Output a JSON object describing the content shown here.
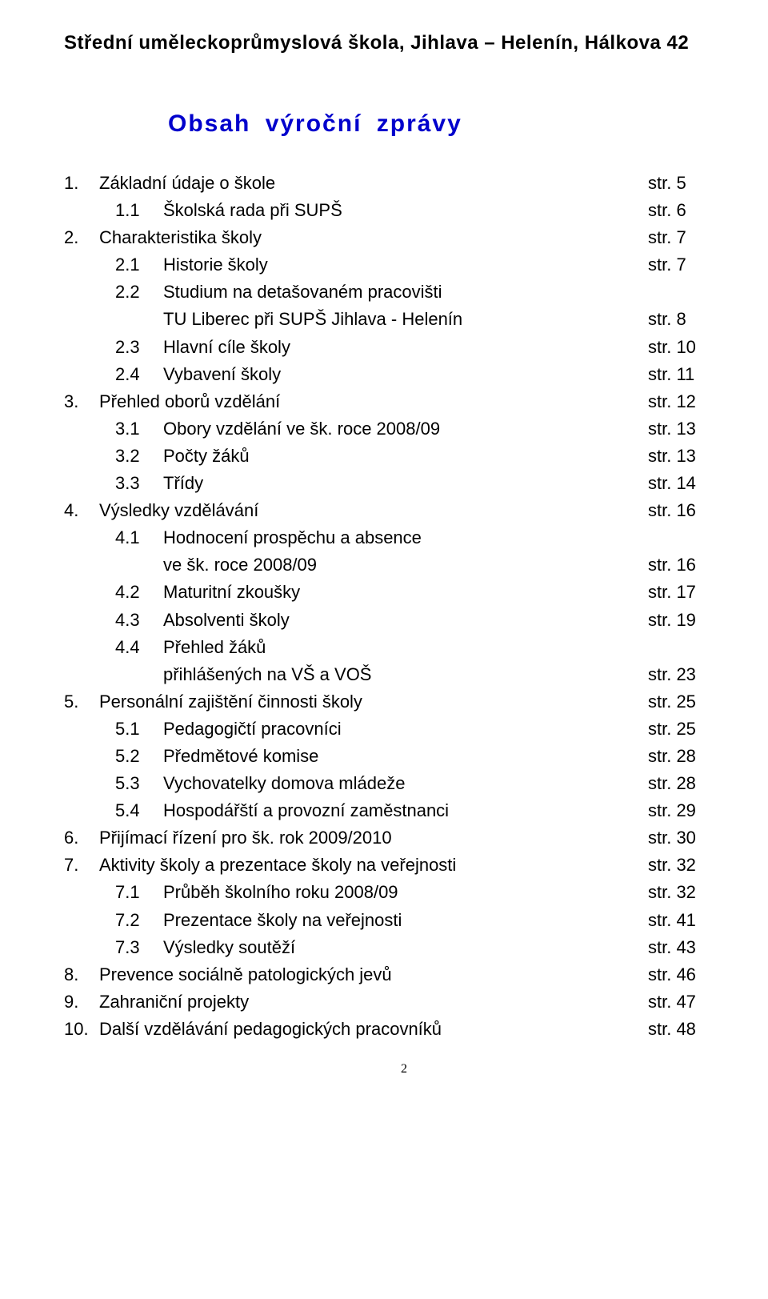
{
  "document": {
    "header": "Střední uměleckoprůmyslová škola, Jihlava – Helenín, Hálkova 42",
    "title": "Obsah  výroční  zprávy",
    "page_label_prefix": "str.",
    "footer_page_number": "2",
    "colors": {
      "title_color": "#0000cc",
      "text_color": "#000000",
      "background": "#ffffff"
    },
    "typography": {
      "header_fontsize": 24,
      "title_fontsize": 30,
      "body_fontsize": 22,
      "font_family": "Comic Sans MS"
    },
    "toc": [
      {
        "level": 0,
        "num": "1.",
        "text": "Základní údaje o škole",
        "page": "5"
      },
      {
        "level": 1,
        "num": "1.1",
        "text": "Školská rada při SUPŠ",
        "page": "6"
      },
      {
        "level": 0,
        "num": "2.",
        "text": "Charakteristika školy",
        "page": "7"
      },
      {
        "level": 1,
        "num": "2.1",
        "text": "Historie školy",
        "page": "7"
      },
      {
        "level": 1,
        "num": "2.2",
        "text": "Studium na detašovaném pracovišti",
        "page": ""
      },
      {
        "level": 1,
        "num": "",
        "text": "TU Liberec při SUPŠ Jihlava - Helenín",
        "page": "8"
      },
      {
        "level": 1,
        "num": "2.3",
        "text": "Hlavní cíle školy",
        "page": "10"
      },
      {
        "level": 1,
        "num": "2.4",
        "text": "Vybavení školy",
        "page": "11"
      },
      {
        "level": 0,
        "num": "3.",
        "text": "Přehled oborů vzdělání",
        "page": "12"
      },
      {
        "level": 1,
        "num": "3.1",
        "text": "Obory vzdělání ve šk. roce 2008/09",
        "page": "13"
      },
      {
        "level": 1,
        "num": "3.2",
        "text": "Počty  žáků",
        "page": "13"
      },
      {
        "level": 1,
        "num": "3.3",
        "text": "Třídy",
        "page": "14"
      },
      {
        "level": 0,
        "num": "4.",
        "text": "Výsledky vzdělávání",
        "page": "16"
      },
      {
        "level": 1,
        "num": "4.1",
        "text": "Hodnocení prospěchu a absence",
        "page": ""
      },
      {
        "level": 1,
        "num": "",
        "text": "ve šk. roce 2008/09",
        "page": "16"
      },
      {
        "level": 1,
        "num": "4.2",
        "text": "Maturitní zkoušky",
        "page": "17"
      },
      {
        "level": 1,
        "num": "4.3",
        "text": "Absolventi školy",
        "page": "19"
      },
      {
        "level": 1,
        "num": "4.4",
        "text": "Přehled žáků",
        "page": ""
      },
      {
        "level": 1,
        "num": "",
        "text": "přihlášených na VŠ a VOŠ",
        "page": "23"
      },
      {
        "level": 0,
        "num": "5.",
        "text": "Personální zajištění činnosti školy",
        "page": "25"
      },
      {
        "level": 1,
        "num": "5.1",
        "text": "Pedagogičtí pracovníci",
        "page": "25"
      },
      {
        "level": 1,
        "num": "5.2",
        "text": "Předmětové komise",
        "page": "28"
      },
      {
        "level": 1,
        "num": "5.3",
        "text": "Vychovatelky domova mládeže",
        "page": "28"
      },
      {
        "level": 1,
        "num": "5.4",
        "text": "Hospodářští a provozní zaměstnanci",
        "page": "29"
      },
      {
        "level": 0,
        "num": "6.",
        "text": "Přijímací řízení pro šk. rok 2009/2010",
        "page": "30"
      },
      {
        "level": 0,
        "num": "7.",
        "text": "Aktivity školy a prezentace školy na veřejnosti",
        "page": "32"
      },
      {
        "level": 1,
        "num": "7.1",
        "text": "Průběh školního roku 2008/09",
        "page": "32"
      },
      {
        "level": 1,
        "num": "7.2",
        "text": "Prezentace školy na veřejnosti",
        "page": "41"
      },
      {
        "level": 1,
        "num": "7.3",
        "text": "Výsledky soutěží",
        "page": "43"
      },
      {
        "level": 0,
        "num": "8.",
        "text": "Prevence sociálně patologických jevů",
        "page": "46"
      },
      {
        "level": 0,
        "num": "9.",
        "text": "Zahraniční projekty",
        "page": "47"
      },
      {
        "level": 0,
        "num": "10.",
        "text": "Další vzdělávání pedagogických pracovníků",
        "page": "48"
      }
    ]
  }
}
